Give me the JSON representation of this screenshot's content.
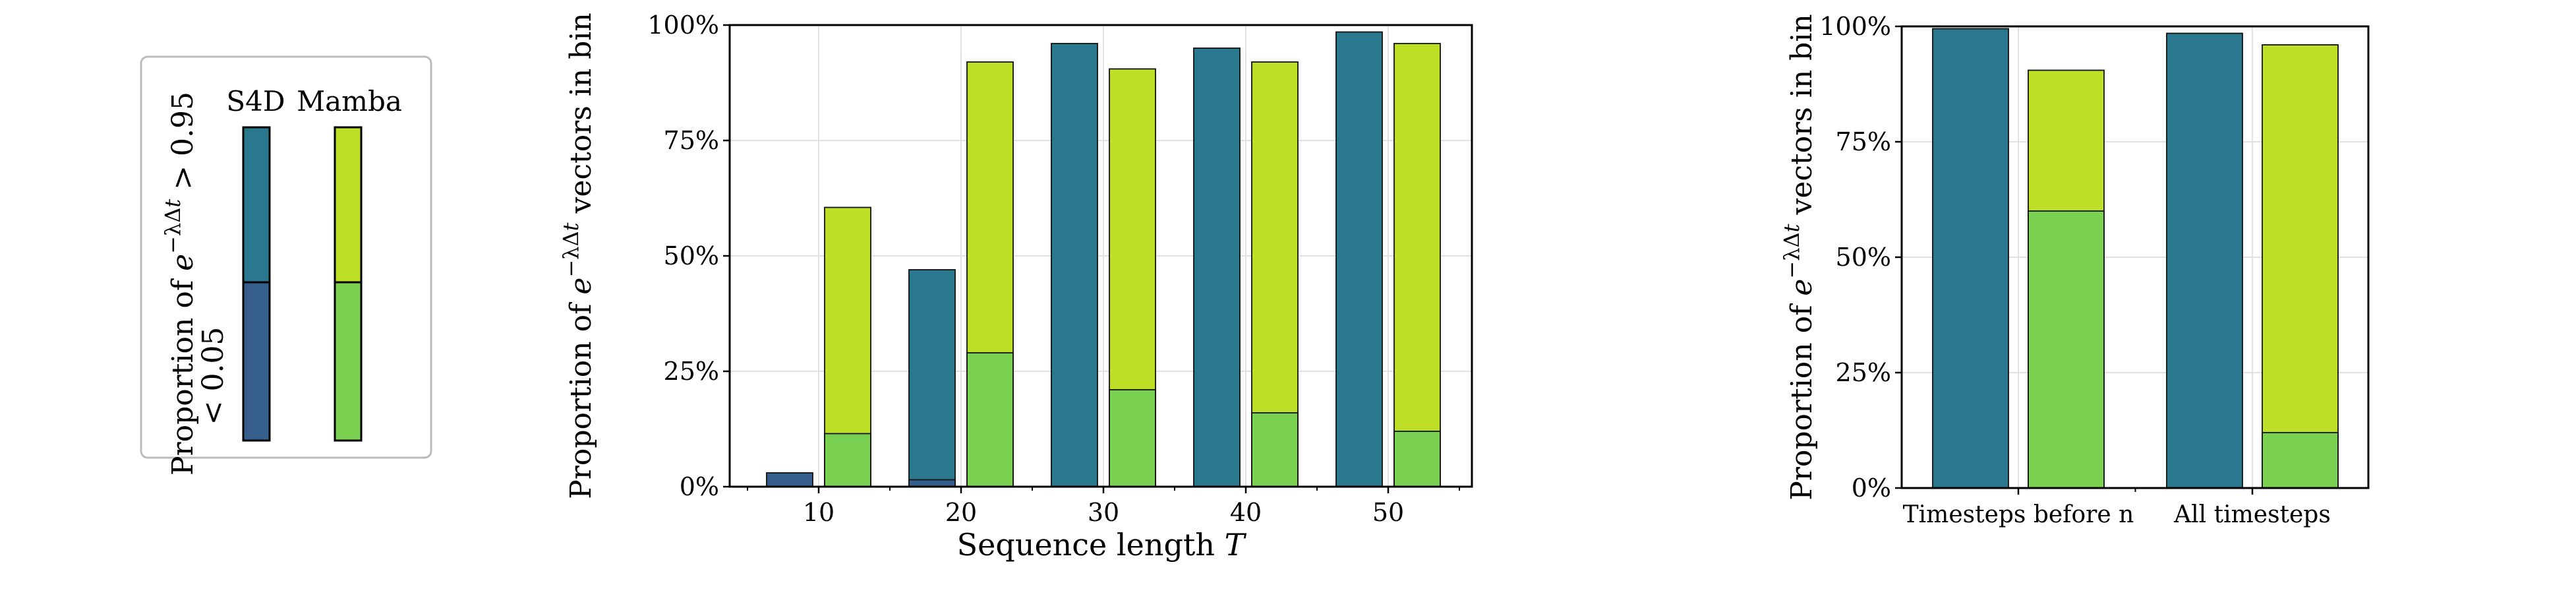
{
  "colors": {
    "s4d_low": "#355e8c",
    "s4d_high": "#2a788e",
    "mamba_low": "#7ad151",
    "mamba_high": "#bddf26",
    "grid": "#d9d9d9",
    "legend_border": "#bbbbbb"
  },
  "legend": {
    "col_labels": [
      "S4D",
      "Mamba"
    ],
    "row_label_high": "Proportion of e^{-λΔt} > 0.95",
    "row_label_low": "< 0.05"
  },
  "chart_data": [
    {
      "type": "bar",
      "stacked": "overlay",
      "categories": [
        "10",
        "20",
        "30",
        "40",
        "50"
      ],
      "xlabel": "Sequence length T",
      "ylabel": "Proportion of e^{-λΔt} vectors in bin",
      "ylim": [
        0,
        100
      ],
      "yticks": [
        "0%",
        "25%",
        "50%",
        "75%",
        "100%"
      ],
      "grid": true,
      "series": [
        {
          "model": "S4D",
          "bin": "> 0.95",
          "values": [
            0,
            47,
            96,
            95,
            98.5
          ]
        },
        {
          "model": "S4D",
          "bin": "< 0.05",
          "values": [
            3,
            1.5,
            0,
            0,
            0
          ]
        },
        {
          "model": "Mamba",
          "bin": "> 0.95",
          "values": [
            60.5,
            92,
            90.5,
            92,
            96
          ]
        },
        {
          "model": "Mamba",
          "bin": "< 0.05",
          "values": [
            11.5,
            29,
            21,
            16,
            12
          ]
        }
      ]
    },
    {
      "type": "bar",
      "stacked": "overlay",
      "categories": [
        "Timesteps before n",
        "All timesteps"
      ],
      "ylabel": "Proportion of e^{-λΔt} vectors in bin",
      "ylim": [
        0,
        100
      ],
      "yticks": [
        "0%",
        "25%",
        "50%",
        "75%",
        "100%"
      ],
      "grid": true,
      "series": [
        {
          "model": "S4D",
          "bin": "> 0.95",
          "values": [
            99.5,
            98.5
          ]
        },
        {
          "model": "S4D",
          "bin": "< 0.05",
          "values": [
            0,
            0
          ]
        },
        {
          "model": "Mamba",
          "bin": "> 0.95",
          "values": [
            90.5,
            96
          ]
        },
        {
          "model": "Mamba",
          "bin": "< 0.05",
          "values": [
            60,
            12
          ]
        }
      ]
    }
  ]
}
